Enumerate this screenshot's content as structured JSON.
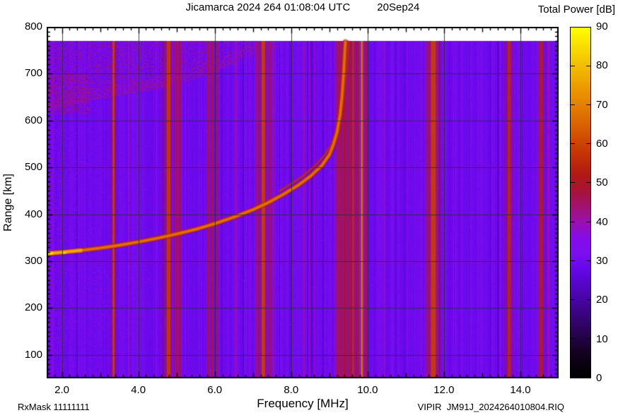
{
  "header": {
    "title_left": "Jicamarca 2024 264 01:08:04 UTC",
    "title_right": "20Sep24",
    "colorbar_title": "Total Power [dB]"
  },
  "footer": {
    "rx_mask": "RxMask 11111111",
    "file_label": "VIPIR  JM91J_2024264010804.RIQ"
  },
  "axes": {
    "x_title": "Frequency [MHz]",
    "y_title": "Range [km]"
  },
  "chart_data": {
    "type": "heatmap",
    "title": "Jicamarca 2024 264 01:08:04 UTC  20Sep24",
    "xlabel": "Frequency [MHz]",
    "ylabel": "Range [km]",
    "zlabel": "Total Power [dB]",
    "xlim": [
      1.6,
      15.0
    ],
    "ylim": [
      50,
      800
    ],
    "zlim": [
      0,
      90
    ],
    "grid": true,
    "grid_color": "#2f2f2f",
    "x_gridline_step_mhz": 2,
    "y_gridline_step_km": 100,
    "x_ticks": [
      {
        "v": 2,
        "label": "2.0"
      },
      {
        "v": 4,
        "label": "4.0"
      },
      {
        "v": 6,
        "label": "6.0"
      },
      {
        "v": 8,
        "label": "8.0"
      },
      {
        "v": 10,
        "label": "10.0"
      },
      {
        "v": 12,
        "label": "12.0"
      },
      {
        "v": 14,
        "label": "14.0"
      }
    ],
    "y_ticks": [
      {
        "v": 100,
        "label": "100"
      },
      {
        "v": 200,
        "label": "200"
      },
      {
        "v": 300,
        "label": "300"
      },
      {
        "v": 400,
        "label": "400"
      },
      {
        "v": 500,
        "label": "500"
      },
      {
        "v": 600,
        "label": "600"
      },
      {
        "v": 700,
        "label": "700"
      },
      {
        "v": 800,
        "label": "800"
      }
    ],
    "colorbar_ticks": [
      {
        "v": 0,
        "label": "0"
      },
      {
        "v": 10,
        "label": "10"
      },
      {
        "v": 20,
        "label": "20"
      },
      {
        "v": 30,
        "label": "30"
      },
      {
        "v": 40,
        "label": "40"
      },
      {
        "v": 50,
        "label": "50"
      },
      {
        "v": 60,
        "label": "60"
      },
      {
        "v": 70,
        "label": "70"
      },
      {
        "v": 80,
        "label": "80"
      },
      {
        "v": 90,
        "label": "90"
      }
    ],
    "palette": [
      {
        "v": 0,
        "color": "#000000"
      },
      {
        "v": 6,
        "color": "#12021e"
      },
      {
        "v": 12,
        "color": "#2a0356"
      },
      {
        "v": 18,
        "color": "#41048f"
      },
      {
        "v": 24,
        "color": "#5506c8"
      },
      {
        "v": 28,
        "color": "#6607ea"
      },
      {
        "v": 32,
        "color": "#7b0ff0"
      },
      {
        "v": 36,
        "color": "#860be8"
      },
      {
        "v": 40,
        "color": "#9a10ae"
      },
      {
        "v": 44,
        "color": "#a21270"
      },
      {
        "v": 48,
        "color": "#a81338"
      },
      {
        "v": 52,
        "color": "#b01815"
      },
      {
        "v": 56,
        "color": "#c02c08"
      },
      {
        "v": 60,
        "color": "#cc4102"
      },
      {
        "v": 64,
        "color": "#d65c02"
      },
      {
        "v": 68,
        "color": "#e07401"
      },
      {
        "v": 72,
        "color": "#e78b00"
      },
      {
        "v": 76,
        "color": "#eda300"
      },
      {
        "v": 80,
        "color": "#f2bc00"
      },
      {
        "v": 85,
        "color": "#f8dc00"
      },
      {
        "v": 90,
        "color": "#ffff00"
      }
    ],
    "background_db": 30,
    "data_top_km": 770,
    "rfi_stripes": [
      {
        "freq_mhz": 3.35,
        "width_mhz": 0.05,
        "level_db": 60
      },
      {
        "freq_mhz": 4.79,
        "width_mhz": 0.1,
        "level_db": 58
      },
      {
        "freq_mhz": 5.0,
        "width_mhz": 0.1,
        "level_db": 45
      },
      {
        "freq_mhz": 5.08,
        "width_mhz": 0.04,
        "level_db": 49
      },
      {
        "freq_mhz": 5.83,
        "width_mhz": 0.04,
        "level_db": 48
      },
      {
        "freq_mhz": 5.93,
        "width_mhz": 0.04,
        "level_db": 50
      },
      {
        "freq_mhz": 6.07,
        "width_mhz": 0.04,
        "level_db": 46
      },
      {
        "freq_mhz": 6.55,
        "width_mhz": 0.04,
        "level_db": 40
      },
      {
        "freq_mhz": 7.1,
        "width_mhz": 0.05,
        "level_db": 44
      },
      {
        "freq_mhz": 7.27,
        "width_mhz": 0.09,
        "level_db": 59
      },
      {
        "freq_mhz": 7.45,
        "width_mhz": 0.07,
        "level_db": 46
      },
      {
        "freq_mhz": 7.53,
        "width_mhz": 0.05,
        "level_db": 42
      },
      {
        "freq_mhz": 8.33,
        "width_mhz": 0.04,
        "level_db": 40
      },
      {
        "freq_mhz": 8.62,
        "width_mhz": 0.04,
        "level_db": 38
      },
      {
        "freq_mhz": 9.21,
        "width_mhz": 0.06,
        "level_db": 48
      },
      {
        "freq_mhz": 9.3,
        "width_mhz": 0.07,
        "level_db": 52
      },
      {
        "freq_mhz": 9.4,
        "width_mhz": 0.09,
        "level_db": 50
      },
      {
        "freq_mhz": 9.52,
        "width_mhz": 0.05,
        "level_db": 52
      },
      {
        "freq_mhz": 9.62,
        "width_mhz": 0.05,
        "level_db": 56
      },
      {
        "freq_mhz": 9.73,
        "width_mhz": 0.05,
        "level_db": 50
      },
      {
        "freq_mhz": 9.85,
        "width_mhz": 0.04,
        "level_db": 70
      },
      {
        "freq_mhz": 9.95,
        "width_mhz": 0.05,
        "level_db": 49
      },
      {
        "freq_mhz": 11.6,
        "width_mhz": 0.05,
        "level_db": 44
      },
      {
        "freq_mhz": 11.72,
        "width_mhz": 0.13,
        "level_db": 59
      },
      {
        "freq_mhz": 13.7,
        "width_mhz": 0.08,
        "level_db": 55
      },
      {
        "freq_mhz": 14.55,
        "width_mhz": 0.07,
        "level_db": 53
      }
    ],
    "o_trace": {
      "name": "F-layer echo trace (main)",
      "points_f_km": [
        [
          1.6,
          316
        ],
        [
          2.0,
          319
        ],
        [
          2.5,
          323
        ],
        [
          3.0,
          328
        ],
        [
          3.5,
          334
        ],
        [
          4.0,
          341
        ],
        [
          4.5,
          349
        ],
        [
          5.0,
          358
        ],
        [
          5.5,
          368
        ],
        [
          6.0,
          380
        ],
        [
          6.5,
          394
        ],
        [
          7.0,
          410
        ],
        [
          7.4,
          425
        ],
        [
          7.8,
          443
        ],
        [
          8.2,
          463
        ],
        [
          8.5,
          481
        ],
        [
          8.8,
          504
        ],
        [
          9.0,
          527
        ],
        [
          9.1,
          548
        ],
        [
          9.2,
          575
        ],
        [
          9.28,
          612
        ],
        [
          9.33,
          652
        ],
        [
          9.37,
          697
        ],
        [
          9.4,
          742
        ],
        [
          9.42,
          768
        ]
      ],
      "bright_start_range_mhz": [
        1.6,
        2.5
      ],
      "critical_freq_mhz": 9.4
    },
    "x_trace": {
      "name": "F-layer echo trace (second branch)",
      "points_f_km": [
        [
          7.7,
          450
        ],
        [
          8.0,
          465
        ],
        [
          8.3,
          482
        ],
        [
          8.6,
          502
        ],
        [
          8.85,
          524
        ],
        [
          9.05,
          548
        ],
        [
          9.2,
          578
        ],
        [
          9.3,
          612
        ],
        [
          9.38,
          652
        ],
        [
          9.44,
          700
        ],
        [
          9.48,
          745
        ],
        [
          9.5,
          768
        ]
      ]
    },
    "spread_f": {
      "name": "diffuse spread-F band (top left)",
      "freq_range_mhz": [
        1.6,
        8.4
      ],
      "top_km": 770,
      "lower_boundary_f_km": [
        [
          1.6,
          615
        ],
        [
          2.0,
          628
        ],
        [
          2.5,
          638
        ],
        [
          3.0,
          646
        ],
        [
          3.5,
          654
        ],
        [
          4.0,
          661
        ],
        [
          4.5,
          668
        ],
        [
          5.0,
          678
        ],
        [
          5.5,
          690
        ],
        [
          6.0,
          706
        ],
        [
          6.5,
          722
        ],
        [
          7.0,
          740
        ],
        [
          7.6,
          757
        ],
        [
          8.1,
          766
        ],
        [
          8.4,
          770
        ]
      ],
      "level_db_range": [
        35,
        46
      ]
    },
    "noise_regions": [
      {
        "f0": 1.6,
        "f1": 2.05,
        "r0": 55,
        "r1": 765,
        "density": 0.1,
        "lv0": 30,
        "lv1": 40
      },
      {
        "f0": 1.6,
        "f1": 3.1,
        "r0": 55,
        "r1": 765,
        "density": 0.035,
        "lv0": 29,
        "lv1": 38
      },
      {
        "f0": 1.6,
        "f1": 4.3,
        "r0": 140,
        "r1": 315,
        "density": 0.03,
        "lv0": 30,
        "lv1": 38
      },
      {
        "f0": 1.6,
        "f1": 9.3,
        "r0": 55,
        "r1": 765,
        "density": 0.007,
        "lv0": 28,
        "lv1": 35
      },
      {
        "f0": 1.6,
        "f1": 2.7,
        "r0": 615,
        "r1": 700,
        "density": 0.3,
        "lv0": 36,
        "lv1": 46
      }
    ]
  }
}
